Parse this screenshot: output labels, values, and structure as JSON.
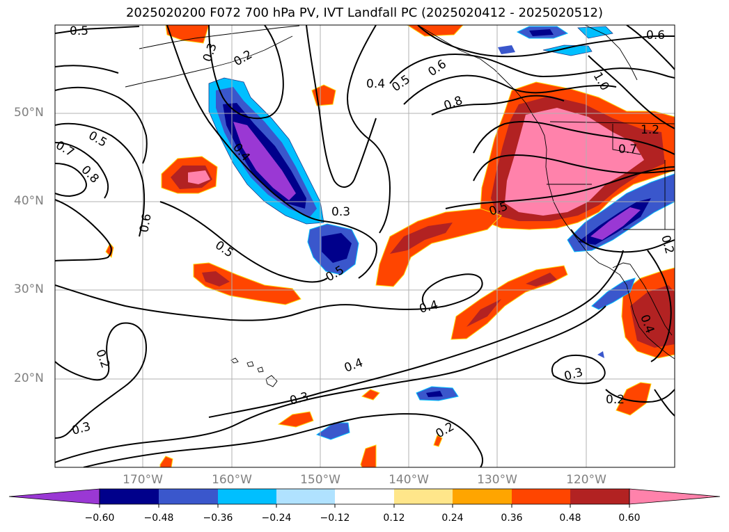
{
  "title": "2025020200 F072 700 hPa PV, IVT Landfall PC (2025020412 - 2025020512)",
  "lat_labels": [
    "50°N",
    "40°N",
    "30°N",
    "20°N"
  ],
  "lon_labels": [
    "170°W",
    "160°W",
    "150°W",
    "140°W",
    "130°W",
    "120°W"
  ],
  "colorbar": {
    "ticks": [
      "−0.60",
      "−0.48",
      "−0.36",
      "−0.24",
      "−0.12",
      "0.12",
      "0.24",
      "0.36",
      "0.48",
      "0.60"
    ],
    "colors": [
      "#9a38d4",
      "#00008b",
      "#3a57cc",
      "#00bfff",
      "#b0e2ff",
      "#ffffff",
      "#ffe68a",
      "#ffa500",
      "#ff4500",
      "#b22222",
      "#ff82ab"
    ]
  },
  "contour_labels": [
    "0.5",
    "0.3",
    "0.2",
    "0.4",
    "0.5",
    "0.6",
    "0.8",
    "1.0",
    "0.6",
    "0.5",
    "0.7",
    "0.8",
    "0.4",
    "0.6",
    "0.3",
    "0.5",
    "0.5",
    "0.5",
    "0.4",
    "0.7",
    "1.2",
    "0.2",
    "0.2",
    "0.4",
    "0.4",
    "0.3",
    "0.3",
    "0.2",
    "0.2",
    "0.3"
  ]
}
